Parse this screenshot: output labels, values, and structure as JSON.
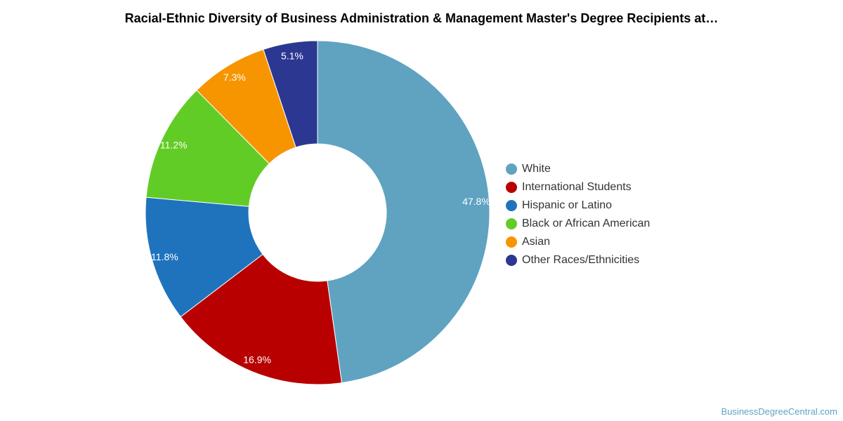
{
  "chart_data": {
    "type": "pie",
    "title": "Racial-Ethnic Diversity of Business Administration & Management Master's Degree Recipients at…",
    "donut": true,
    "legend_position": "right",
    "slices": [
      {
        "label": "White",
        "value": 47.8,
        "display": "47.8%",
        "color": "#5fa3c1"
      },
      {
        "label": "International Students",
        "value": 16.9,
        "display": "16.9%",
        "color": "#b80000"
      },
      {
        "label": "Hispanic or Latino",
        "value": 11.8,
        "display": "11.8%",
        "color": "#1f73bd"
      },
      {
        "label": "Black or African American",
        "value": 11.2,
        "display": "11.2%",
        "color": "#62cc26"
      },
      {
        "label": "Asian",
        "value": 7.3,
        "display": "7.3%",
        "color": "#f79500"
      },
      {
        "label": "Other Races/Ethnicities",
        "value": 5.1,
        "display": "5.1%",
        "color": "#2c3791"
      }
    ]
  },
  "source": "BusinessDegreeCentral.com"
}
